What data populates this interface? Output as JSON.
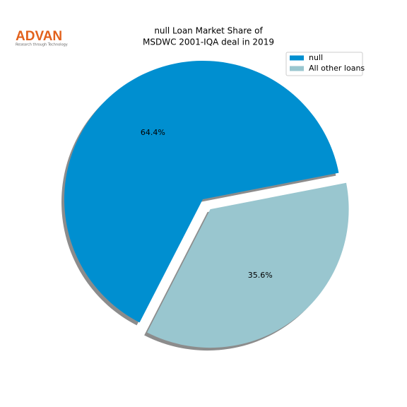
{
  "logo": {
    "text": "ADVAN",
    "tagline": "Research through Technology"
  },
  "chart_data": {
    "type": "pie",
    "title": [
      "null Loan Market Share of",
      "MSDWC 2001-IQA deal in 2019"
    ],
    "categories": [
      "null",
      "All other loans"
    ],
    "values": [
      64.4,
      35.6
    ],
    "value_labels": [
      "64.4%",
      "35.6%"
    ],
    "colors": [
      "#008fd0",
      "#99c6cf"
    ],
    "legend": "upper right"
  }
}
